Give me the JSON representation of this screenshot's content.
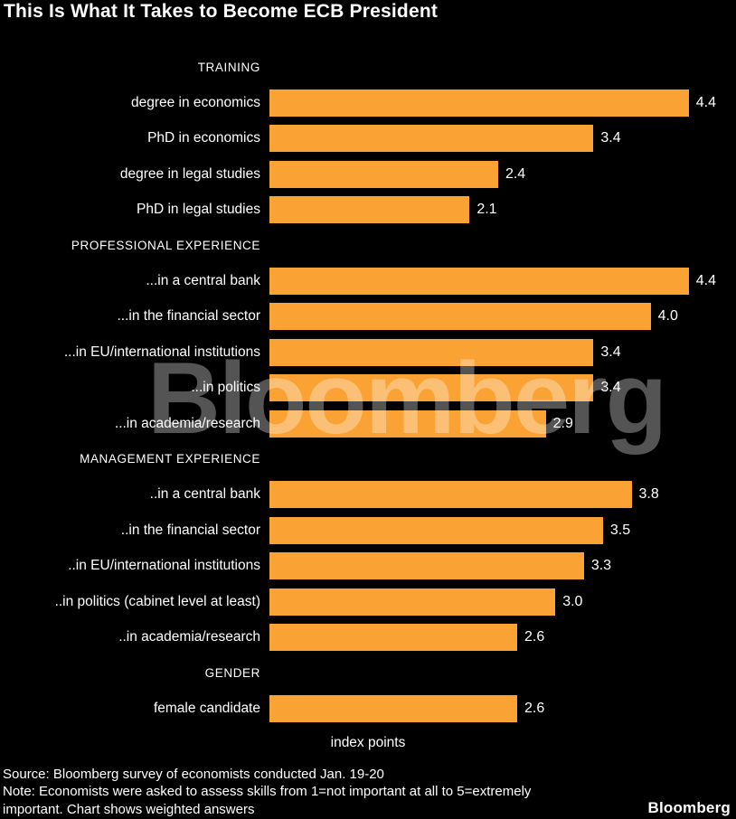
{
  "title": "This Is What It Takes to Become ECB President",
  "watermark": "Bloomberg",
  "brand": "Bloomberg",
  "footer": {
    "source": "Source: Bloomberg survey of economists conducted Jan. 19-20",
    "note_line1": "Note: Economists were asked to assess skills from 1=not important at all to 5=extremely",
    "note_line2": "important. Chart shows weighted answers"
  },
  "colors": {
    "background": "#000000",
    "bar": "#FAA233",
    "text": "#FFFFFF",
    "watermark": "rgba(255,255,255,0.33)"
  },
  "chart_data": {
    "type": "bar",
    "orientation": "horizontal",
    "title": "This Is What It Takes to Become ECB President",
    "xlabel": "index points",
    "ylabel": "",
    "xlim": [
      0,
      4.6
    ],
    "value_unit": "index points",
    "legend": null,
    "grid": false,
    "groups": [
      {
        "header": "TRAINING",
        "items": [
          {
            "label": "degree in economics",
            "value": 4.4
          },
          {
            "label": "PhD in economics",
            "value": 3.4
          },
          {
            "label": "degree in legal studies",
            "value": 2.4
          },
          {
            "label": "PhD in legal studies",
            "value": 2.1
          }
        ]
      },
      {
        "header": "PROFESSIONAL EXPERIENCE",
        "items": [
          {
            "label": "...in a central bank",
            "value": 4.4
          },
          {
            "label": "...in the financial sector",
            "value": 4.0
          },
          {
            "label": "...in EU/international institutions",
            "value": 3.4
          },
          {
            "label": "...in politics",
            "value": 3.4
          },
          {
            "label": "...in academia/research",
            "value": 2.9
          }
        ]
      },
      {
        "header": "MANAGEMENT EXPERIENCE",
        "items": [
          {
            "label": "..in a central bank",
            "value": 3.8
          },
          {
            "label": "..in the financial sector",
            "value": 3.5
          },
          {
            "label": "..in EU/international institutions",
            "value": 3.3
          },
          {
            "label": "..in politics (cabinet level at least)",
            "value": 3.0
          },
          {
            "label": "..in academia/research",
            "value": 2.6
          }
        ]
      },
      {
        "header": "GENDER",
        "items": [
          {
            "label": "female candidate",
            "value": 2.6
          }
        ]
      }
    ]
  }
}
